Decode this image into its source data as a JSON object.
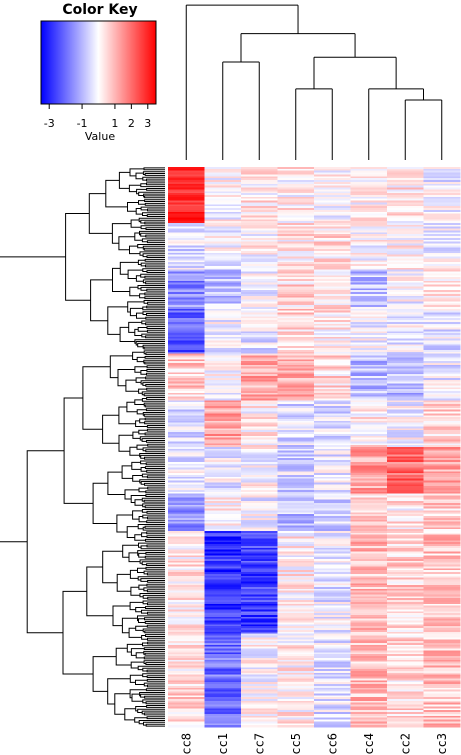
{
  "chart_data": {
    "type": "heatmap",
    "color_key": {
      "title": "Color Key",
      "label": "Value",
      "ticks": [
        -3,
        -1,
        1,
        2,
        3
      ],
      "tick_labels": [
        "-3",
        "-1",
        "1",
        "2",
        "3"
      ],
      "range": [
        -3.5,
        3.5
      ],
      "low_color": "#0000ff",
      "mid_color": "#ffffff",
      "high_color": "#ff0000"
    },
    "columns": [
      "cc8",
      "cc1",
      "cc7",
      "cc5",
      "cc6",
      "cc4",
      "cc2",
      "cc3"
    ],
    "row_count": 300,
    "row_blocks": [
      {
        "rows": 30,
        "values": [
          3.0,
          0.0,
          0.3,
          0.2,
          0.0,
          0.2,
          0.3,
          -0.2
        ]
      },
      {
        "rows": 25,
        "values": [
          -0.4,
          -0.1,
          0.1,
          0.3,
          0.4,
          0.0,
          0.2,
          -0.2
        ]
      },
      {
        "rows": 20,
        "values": [
          -1.6,
          -0.8,
          -0.2,
          0.5,
          0.2,
          -0.8,
          -0.1,
          0.3
        ]
      },
      {
        "rows": 25,
        "values": [
          -2.2,
          -0.2,
          -0.3,
          0.6,
          0.3,
          -0.1,
          -0.2,
          -0.3
        ]
      },
      {
        "rows": 25,
        "values": [
          0.7,
          0.0,
          1.1,
          1.2,
          0.5,
          -0.9,
          -0.9,
          -0.3
        ]
      },
      {
        "rows": 25,
        "values": [
          -0.5,
          1.2,
          0.2,
          -0.4,
          -0.5,
          0.2,
          -0.1,
          0.6
        ]
      },
      {
        "rows": 25,
        "values": [
          -0.3,
          -0.2,
          0.0,
          -0.5,
          -0.3,
          1.3,
          2.0,
          1.2
        ]
      },
      {
        "rows": 20,
        "values": [
          -1.6,
          0.2,
          -0.2,
          -0.8,
          -0.6,
          0.7,
          0.3,
          0.7
        ]
      },
      {
        "rows": 55,
        "values": [
          0.3,
          -2.8,
          -2.6,
          0.2,
          -0.3,
          0.9,
          0.6,
          0.8
        ]
      },
      {
        "rows": 50,
        "values": [
          0.5,
          -2.0,
          0.0,
          0.2,
          -0.4,
          0.9,
          0.5,
          0.8
        ]
      }
    ],
    "column_dendrogram": [
      [
        1,
        2
      ],
      [
        3,
        4
      ],
      [
        6,
        7
      ],
      [
        5,
        -3
      ],
      [
        -2,
        -4
      ],
      [
        -1,
        -5
      ],
      [
        0,
        -6
      ]
    ],
    "row_dendrogram_leaves": 300
  }
}
